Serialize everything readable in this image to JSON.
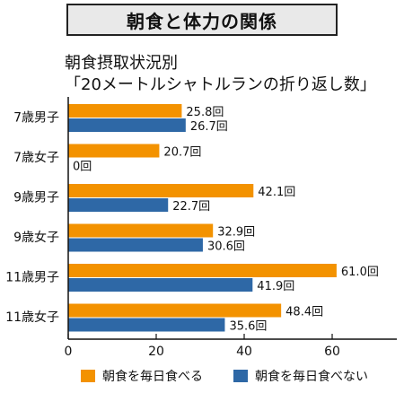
{
  "title": "朝食と体力の関係",
  "subtitle_line1": "朝食摂取状況別",
  "subtitle_line2": "「20メートルシャトルランの折り返し数」",
  "chart_data": {
    "type": "bar",
    "orientation": "horizontal",
    "categories": [
      "7歳男子",
      "7歳女子",
      "9歳男子",
      "9歳女子",
      "11歳男子",
      "11歳女子"
    ],
    "series": [
      {
        "name": "朝食を毎日食べる",
        "color": "#f39200",
        "values": [
          25.8,
          20.7,
          42.1,
          32.9,
          61.0,
          48.4
        ],
        "labels": [
          "25.8回",
          "20.7回",
          "42.1回",
          "32.9回",
          "61.0回",
          "48.4回"
        ]
      },
      {
        "name": "朝食を毎日食べない",
        "color": "#2e68a6",
        "values": [
          26.7,
          0,
          22.7,
          30.6,
          41.9,
          35.6
        ],
        "labels": [
          "26.7回",
          "0回",
          "22.7回",
          "30.6回",
          "41.9回",
          "35.6回"
        ]
      }
    ],
    "xlim": [
      0,
      75
    ],
    "xticks": [
      0,
      20,
      40,
      60
    ],
    "grid": false,
    "legend_position": "bottom"
  }
}
